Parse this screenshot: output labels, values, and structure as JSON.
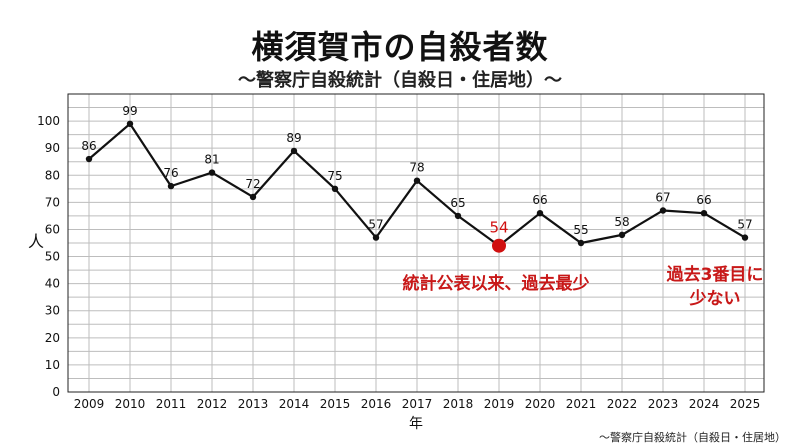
{
  "title": "横須賀市の自殺者数",
  "subtitle": "〜警察庁自殺統計（自殺日・住居地）〜",
  "source": "〜警察庁自殺統計（自殺日・住居地）",
  "chart_data": {
    "type": "line",
    "title": "横須賀市の自殺者数",
    "subtitle": "〜警察庁自殺統計（自殺日・住居地）〜",
    "xlabel": "年",
    "ylabel": "人",
    "categories": [
      "2009",
      "2010",
      "2011",
      "2012",
      "2013",
      "2014",
      "2015",
      "2016",
      "2017",
      "2018",
      "2019",
      "2020",
      "2021",
      "2022",
      "2023",
      "2024",
      "2025"
    ],
    "values": [
      86,
      99,
      76,
      81,
      72,
      89,
      75,
      57,
      78,
      65,
      54,
      66,
      55,
      58,
      67,
      66,
      57
    ],
    "ylim": [
      0,
      110
    ],
    "yticks": [
      0,
      10,
      20,
      30,
      40,
      50,
      60,
      70,
      80,
      90,
      100
    ],
    "grid": true,
    "line_color": "#111111",
    "highlight": {
      "category": "2019",
      "value": 54,
      "color": "#d01010"
    },
    "annotations": [
      {
        "lines": [
          "統計公表以来、過去最少"
        ],
        "color": "#c81818"
      },
      {
        "lines": [
          "過去3番目に",
          "少ない"
        ],
        "color": "#c81818"
      }
    ]
  }
}
